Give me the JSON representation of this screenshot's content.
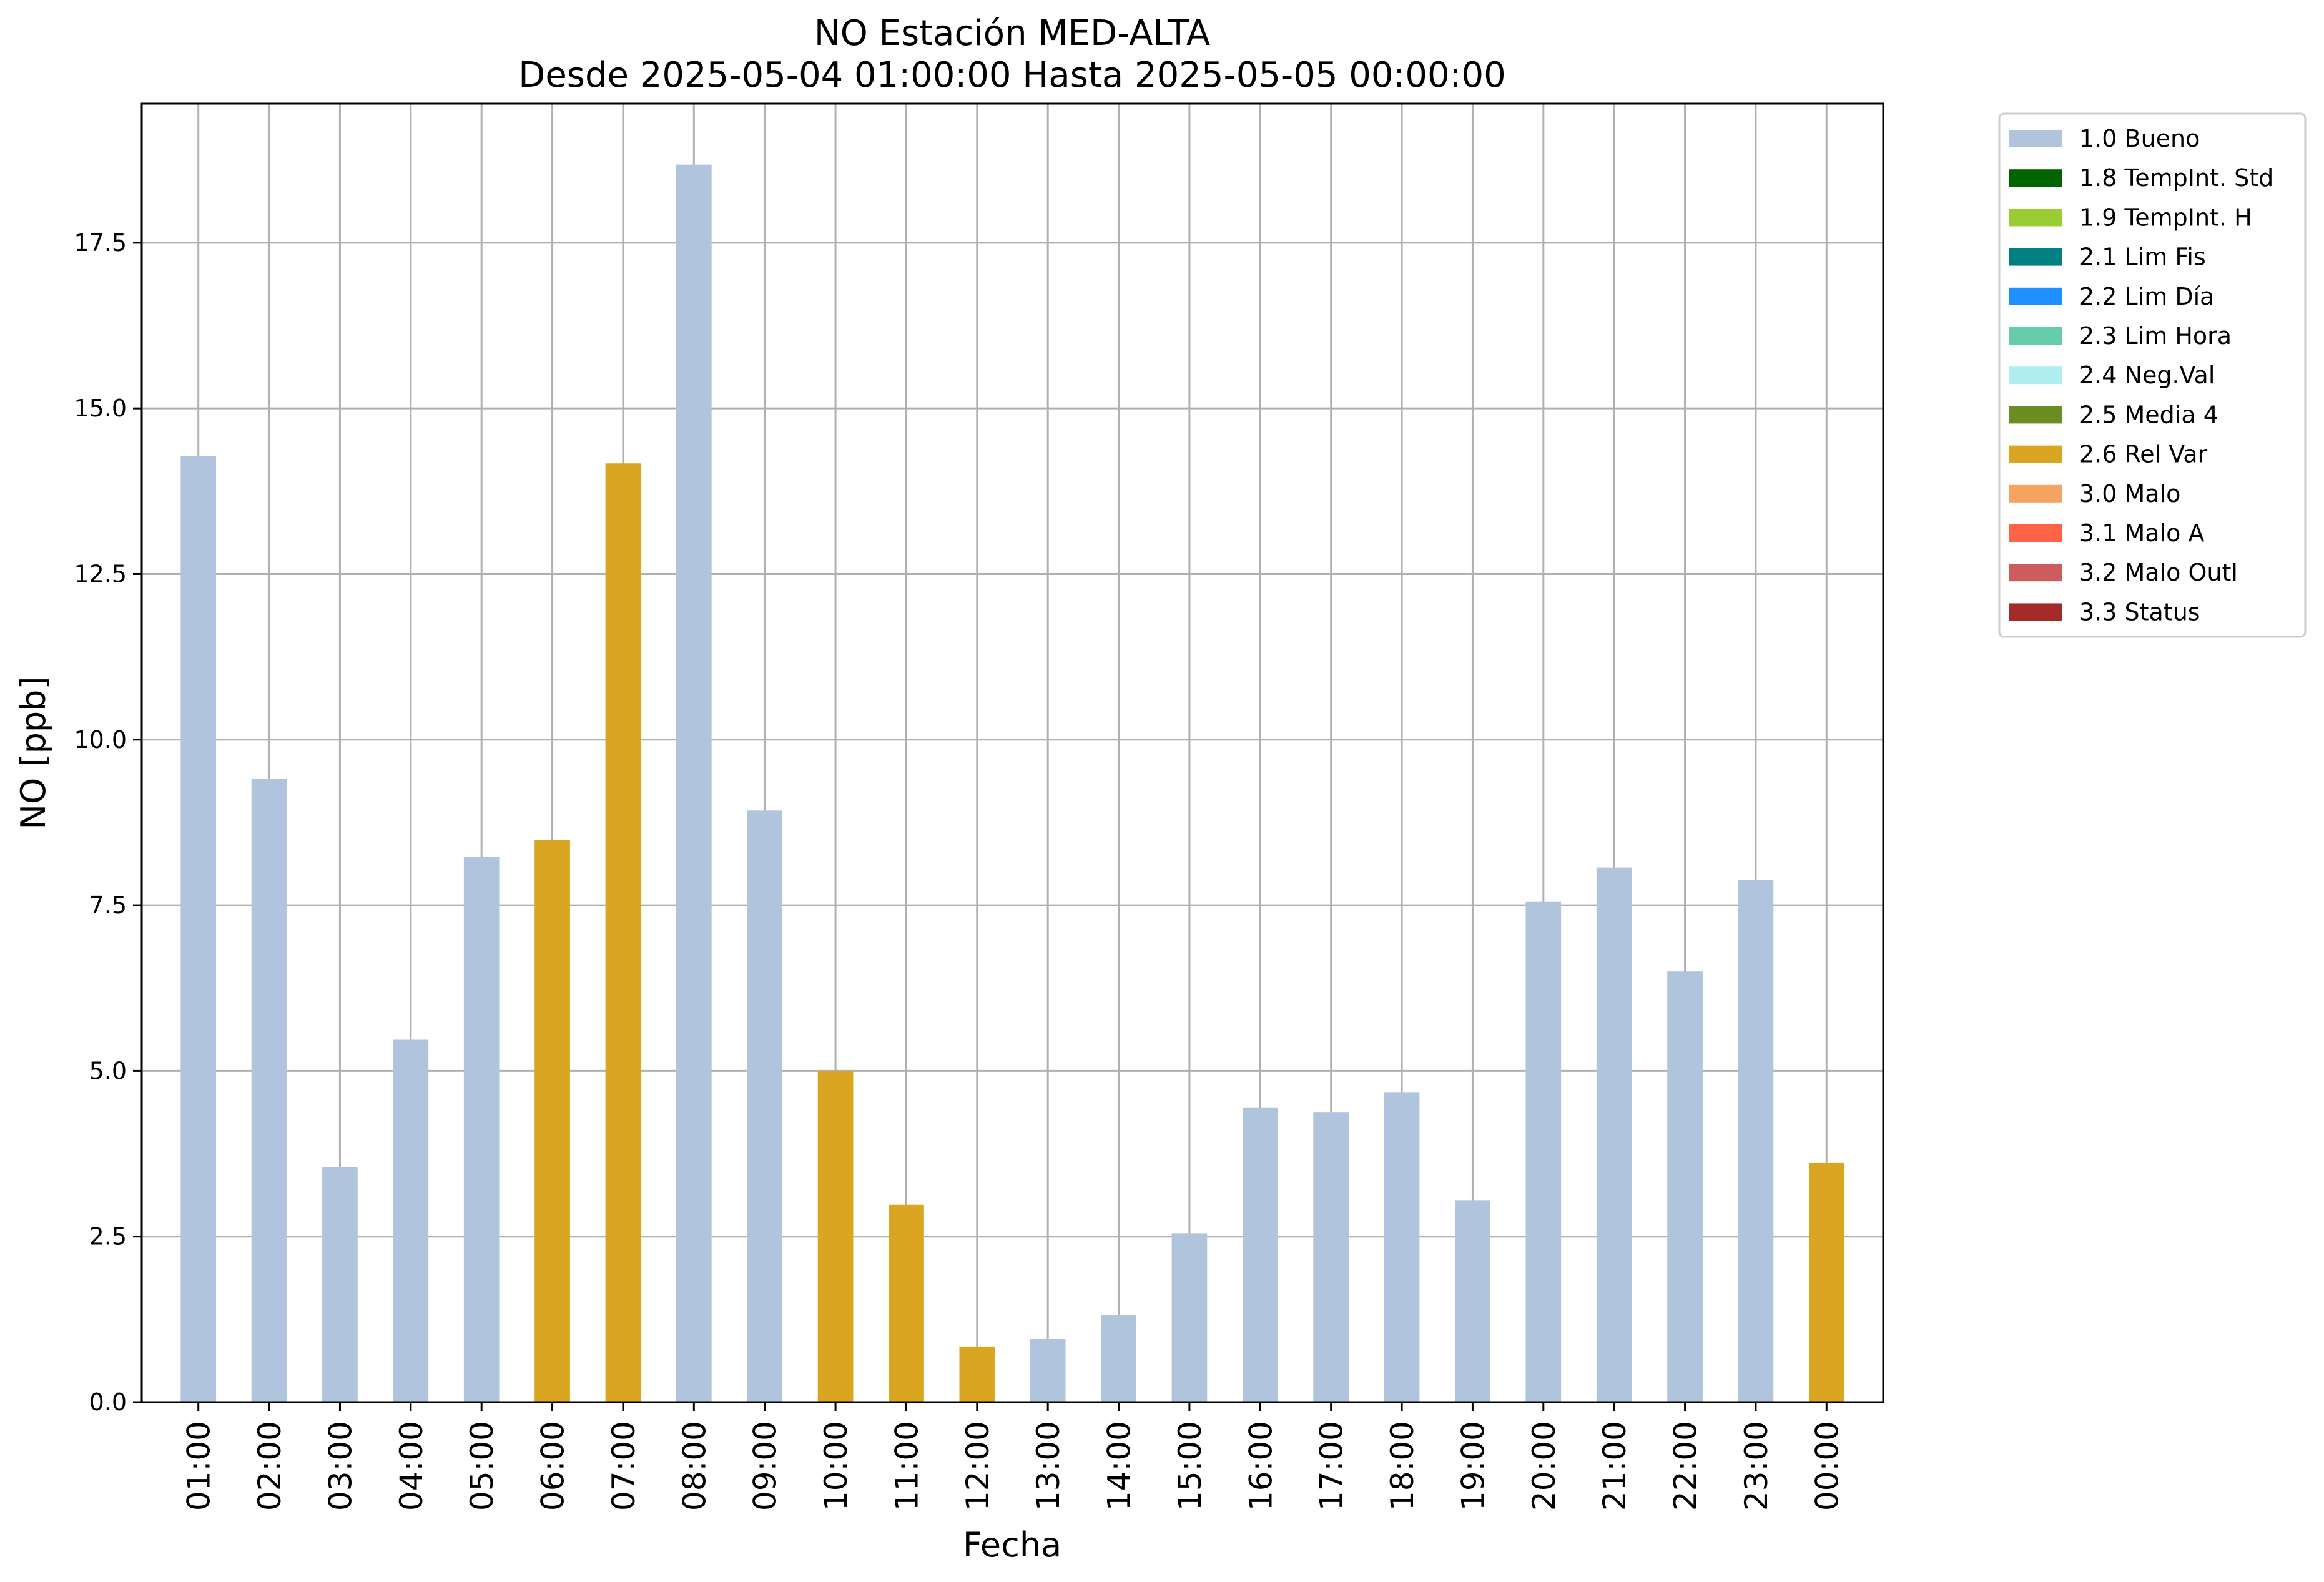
{
  "chart_data": {
    "type": "bar",
    "title": "NO Estación MED-ALTA",
    "subtitle": "Desde 2025-05-04 01:00:00 Hasta 2025-05-05 00:00:00",
    "xlabel": "Fecha",
    "ylabel": "NO [ppb]",
    "ylim": [
      0,
      19.6
    ],
    "yticks": [
      "0.0",
      "2.5",
      "5.0",
      "7.5",
      "10.0",
      "12.5",
      "15.0",
      "17.5"
    ],
    "grid": true,
    "legend_position": "outside-top-right",
    "categories": [
      "01:00",
      "02:00",
      "03:00",
      "04:00",
      "05:00",
      "06:00",
      "07:00",
      "08:00",
      "09:00",
      "10:00",
      "11:00",
      "12:00",
      "13:00",
      "14:00",
      "15:00",
      "16:00",
      "17:00",
      "18:00",
      "19:00",
      "20:00",
      "21:00",
      "22:00",
      "23:00",
      "00:00"
    ],
    "values": [
      14.28,
      9.41,
      3.55,
      5.47,
      8.23,
      8.49,
      14.17,
      18.68,
      8.93,
      5.0,
      2.98,
      0.84,
      0.96,
      1.31,
      2.55,
      4.45,
      4.38,
      4.68,
      3.05,
      7.56,
      8.07,
      6.5,
      7.88,
      3.61
    ],
    "flags": [
      "1.0",
      "1.0",
      "1.0",
      "1.0",
      "1.0",
      "2.6",
      "2.6",
      "1.0",
      "1.0",
      "2.6",
      "2.6",
      "2.6",
      "1.0",
      "1.0",
      "1.0",
      "1.0",
      "1.0",
      "1.0",
      "1.0",
      "1.0",
      "1.0",
      "1.0",
      "1.0",
      "2.6"
    ],
    "legend": [
      {
        "code": "1.0",
        "label": "1.0 Bueno",
        "color": "#b0c4de"
      },
      {
        "code": "1.8",
        "label": "1.8 TempInt. Std",
        "color": "#006400"
      },
      {
        "code": "1.9",
        "label": "1.9 TempInt. H",
        "color": "#9acd32"
      },
      {
        "code": "2.1",
        "label": "2.1 Lim Fis",
        "color": "#008080"
      },
      {
        "code": "2.2",
        "label": "2.2 Lim Día",
        "color": "#1e90ff"
      },
      {
        "code": "2.3",
        "label": "2.3 Lim Hora",
        "color": "#66cdaa"
      },
      {
        "code": "2.4",
        "label": "2.4 Neg.Val",
        "color": "#afeeee"
      },
      {
        "code": "2.5",
        "label": "2.5 Media 4",
        "color": "#6b8e23"
      },
      {
        "code": "2.6",
        "label": "2.6 Rel Var",
        "color": "#daa520"
      },
      {
        "code": "3.0",
        "label": "3.0 Malo",
        "color": "#f4a460"
      },
      {
        "code": "3.1",
        "label": "3.1 Malo A",
        "color": "#ff6347"
      },
      {
        "code": "3.2",
        "label": "3.2 Malo Outl",
        "color": "#cd5c5c"
      },
      {
        "code": "3.3",
        "label": "3.3 Status",
        "color": "#a52a2a"
      }
    ]
  }
}
